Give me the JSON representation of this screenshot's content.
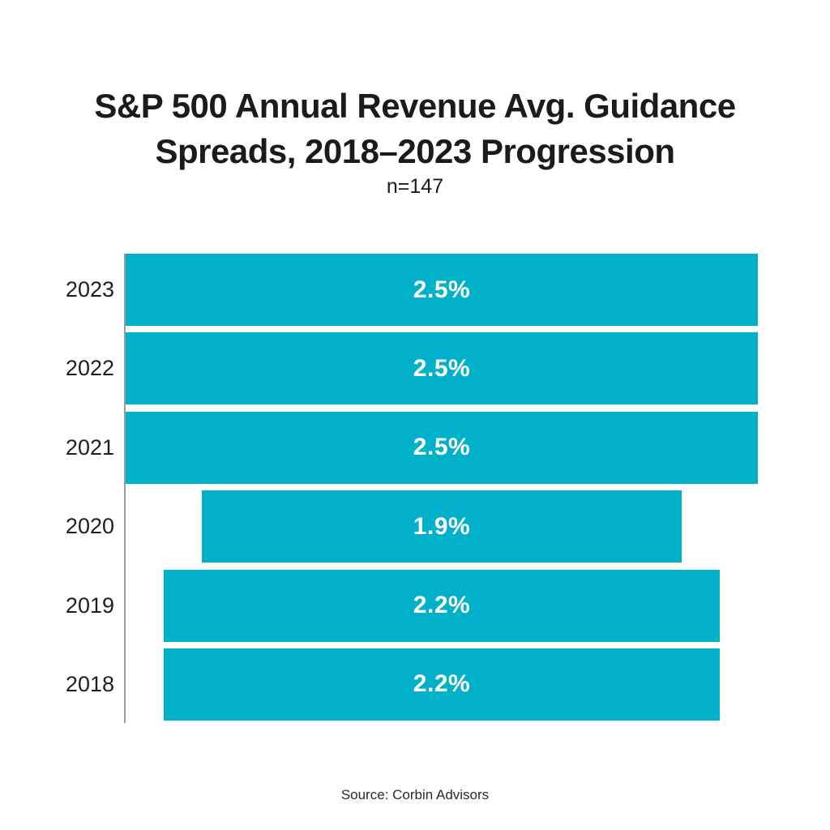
{
  "title": {
    "line1": "S&P 500 Annual Revenue Avg. Guidance",
    "line2": "Spreads, 2018–2023 Progression",
    "subtitle": "n=147"
  },
  "source_note": "Source: Corbin Advisors",
  "colors": {
    "bar": "#00b1c9",
    "title_text": "#1b1b1b",
    "axis_line": "#9b9b9b",
    "value_text": "#ffffff",
    "background": "#ffffff"
  },
  "chart_data": {
    "type": "bar",
    "orientation": "horizontal-centered-funnel",
    "title": "S&P 500 Annual Revenue Avg. Guidance Spreads, 2018–2023 Progression",
    "subtitle": "n=147",
    "categories": [
      "2023",
      "2022",
      "2021",
      "2020",
      "2019",
      "2018"
    ],
    "values": [
      2.5,
      2.5,
      2.5,
      1.9,
      2.2,
      2.2
    ],
    "value_labels": [
      "2.5%",
      "2.5%",
      "2.5%",
      "1.9%",
      "2.2%",
      "2.2%"
    ],
    "xlim": [
      0,
      2.5
    ],
    "grid": false,
    "legend": "none",
    "bar_color": "#00b1c9",
    "value_label_position": "inside-center",
    "source": "Source: Corbin Advisors"
  }
}
